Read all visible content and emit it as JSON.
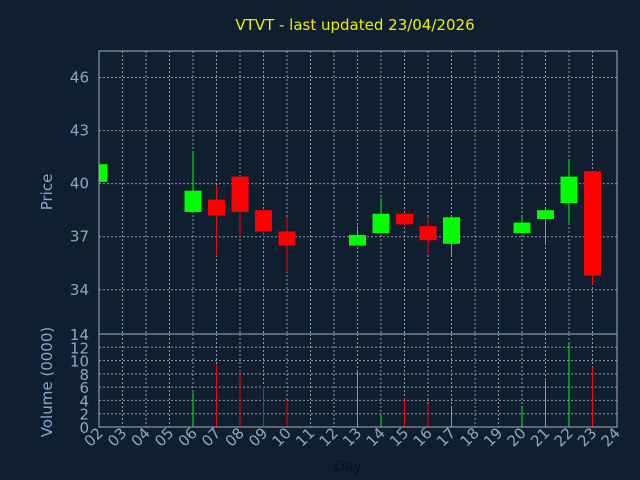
{
  "chart_data": {
    "type": "candlestick",
    "title": "VTVT - last updated 23/04/2026",
    "xlabel": "Day",
    "price_ylabel": "Price",
    "volume_ylabel": "Volume (0000)",
    "x_ticks": [
      "02",
      "03",
      "04",
      "05",
      "06",
      "07",
      "08",
      "09",
      "10",
      "11",
      "12",
      "13",
      "14",
      "15",
      "16",
      "17",
      "18",
      "19",
      "20",
      "21",
      "22",
      "23",
      "24"
    ],
    "price_ylim": [
      31.5,
      47.5
    ],
    "price_ticks": [
      34,
      37,
      40,
      43,
      46
    ],
    "volume_ylim": [
      0,
      14
    ],
    "volume_ticks": [
      0,
      2,
      4,
      6,
      8,
      10,
      12,
      14
    ],
    "up_color": "#00ff00",
    "down_color": "#ff0000",
    "grid": true,
    "candles": [
      {
        "day": 2,
        "open": 40.1,
        "high": 41.1,
        "low": 40.1,
        "close": 41.1,
        "volume": 0
      },
      {
        "day": 6,
        "open": 38.4,
        "high": 41.8,
        "low": 38.4,
        "close": 39.6,
        "volume": 5.2
      },
      {
        "day": 7,
        "open": 39.1,
        "high": 39.9,
        "low": 35.9,
        "close": 38.2,
        "volume": 9.4
      },
      {
        "day": 8,
        "open": 40.4,
        "high": 40.4,
        "low": 37.0,
        "close": 38.4,
        "volume": 8.0
      },
      {
        "day": 9,
        "open": 38.5,
        "high": 38.5,
        "low": 36.9,
        "close": 37.3,
        "volume": 6.2
      },
      {
        "day": 10,
        "open": 37.3,
        "high": 38.1,
        "low": 35.0,
        "close": 36.5,
        "volume": 4.0
      },
      {
        "day": 13,
        "open": 36.5,
        "high": 37.6,
        "low": 36.5,
        "close": 37.1,
        "volume": 8.6
      },
      {
        "day": 14,
        "open": 37.2,
        "high": 39.2,
        "low": 37.2,
        "close": 38.3,
        "volume": 1.8
      },
      {
        "day": 15,
        "open": 38.3,
        "high": 38.3,
        "low": 37.6,
        "close": 37.7,
        "volume": 4.3
      },
      {
        "day": 16,
        "open": 37.6,
        "high": 38.1,
        "low": 36.0,
        "close": 36.8,
        "volume": 3.4
      },
      {
        "day": 17,
        "open": 36.6,
        "high": 38.1,
        "low": 35.9,
        "close": 38.1,
        "volume": 3.2
      },
      {
        "day": 20,
        "open": 37.2,
        "high": 38.2,
        "low": 37.2,
        "close": 37.8,
        "volume": 3.0
      },
      {
        "day": 21,
        "open": 38.0,
        "high": 38.6,
        "low": 36.6,
        "close": 38.5,
        "volume": 7.0
      },
      {
        "day": 22,
        "open": 38.9,
        "high": 41.3,
        "low": 37.8,
        "close": 40.4,
        "volume": 12.6
      },
      {
        "day": 23,
        "open": 40.7,
        "high": 40.7,
        "low": 34.3,
        "close": 34.8,
        "volume": 9.0
      }
    ]
  }
}
